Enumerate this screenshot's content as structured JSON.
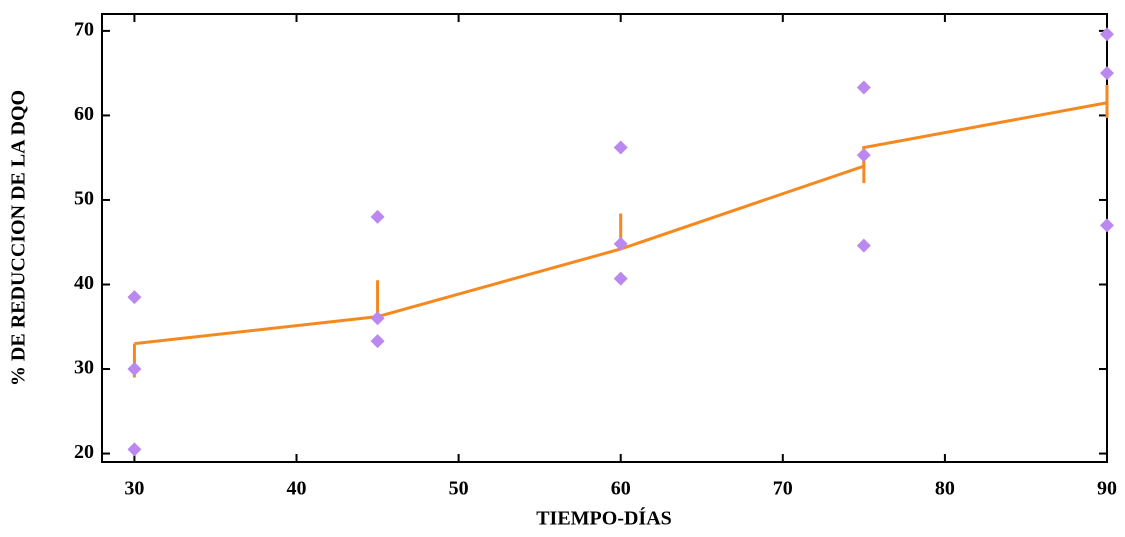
{
  "chart_data": {
    "type": "scatter",
    "x_label": "TIEMPO-DÍAS",
    "y_label": "% DE REDUCCION DE LA DQO",
    "x": [
      30,
      30,
      30,
      45,
      45,
      45,
      60,
      60,
      60,
      75,
      75,
      75,
      90,
      90,
      90
    ],
    "values": [
      38.5,
      30,
      20.5,
      48,
      36,
      33.3,
      56.2,
      44.8,
      40.7,
      63.3,
      55.3,
      44.6,
      69.6,
      65,
      47
    ],
    "color": "#bb88f0",
    "fit": {
      "x": [
        30,
        45,
        60,
        75,
        75,
        90
      ],
      "values": [
        33,
        36.2,
        44.2,
        54,
        56.2,
        61.5
      ],
      "color": "#f5891f"
    },
    "intervals": {
      "x": [
        30,
        45,
        60,
        75,
        90
      ],
      "low": [
        29,
        36,
        44.3,
        52,
        59.7
      ],
      "high": [
        33,
        40.5,
        48.4,
        56.3,
        63.6
      ]
    },
    "xlim": [
      28,
      90
    ],
    "ylim": [
      19,
      72
    ],
    "xticks": [
      30,
      40,
      50,
      60,
      70,
      80,
      90
    ],
    "yticks": [
      20,
      30,
      40,
      50,
      60,
      70
    ]
  }
}
